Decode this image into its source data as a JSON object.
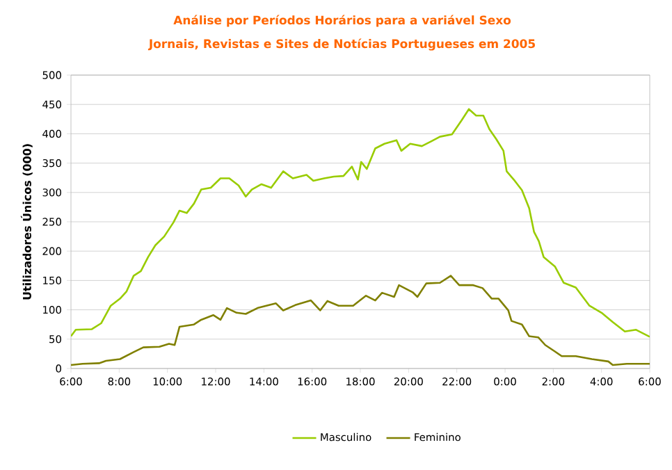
{
  "chart_data": {
    "type": "line",
    "title": "Análise por Períodos Horários para a variável Sexo",
    "subtitle": "Jornais, Revistas e Sites de Notícias Portugueses em 2005",
    "ylabel": "Utilizadores Únicos (000)",
    "xlim": [
      "2005-01-01T06:00",
      "2005-01-02T06:00"
    ],
    "ylim": [
      0,
      500
    ],
    "xticks": [
      {
        "value": "2005-01-01T06:00",
        "label": "6:00"
      },
      {
        "value": "2005-01-01T08:00",
        "label": "8:00"
      },
      {
        "value": "2005-01-01T10:00",
        "label": "10:00"
      },
      {
        "value": "2005-01-01T12:00",
        "label": "12:00"
      },
      {
        "value": "2005-01-01T14:00",
        "label": "14:00"
      },
      {
        "value": "2005-01-01T16:00",
        "label": "16:00"
      },
      {
        "value": "2005-01-01T18:00",
        "label": "18:00"
      },
      {
        "value": "2005-01-01T20:00",
        "label": "20:00"
      },
      {
        "value": "2005-01-01T22:00",
        "label": "22:00"
      },
      {
        "value": "2005-01-02T00:00",
        "label": "0:00"
      },
      {
        "value": "2005-01-02T02:00",
        "label": "2:00"
      },
      {
        "value": "2005-01-02T04:00",
        "label": "4:00"
      },
      {
        "value": "2005-01-02T06:00",
        "label": "6:00"
      }
    ],
    "yticks": [
      0,
      50,
      100,
      150,
      200,
      250,
      300,
      350,
      400,
      450,
      500
    ],
    "grid": "y",
    "legend": "bottom",
    "marker": "none",
    "series": [
      {
        "name": "Masculino",
        "color": "#99cc00",
        "x": [
          "2005-01-01T06:00",
          "2005-01-01T06:12",
          "2005-01-01T06:52",
          "2005-01-01T07:15",
          "2005-01-01T07:39",
          "2005-01-01T08:02",
          "2005-01-01T08:18",
          "2005-01-01T08:36",
          "2005-01-01T08:54",
          "2005-01-01T09:12",
          "2005-01-01T09:30",
          "2005-01-01T09:52",
          "2005-01-01T10:15",
          "2005-01-01T10:30",
          "2005-01-01T10:48",
          "2005-01-01T11:06",
          "2005-01-01T11:24",
          "2005-01-01T11:48",
          "2005-01-01T12:12",
          "2005-01-01T12:34",
          "2005-01-01T12:57",
          "2005-01-01T13:15",
          "2005-01-01T13:30",
          "2005-01-01T13:54",
          "2005-01-01T14:18",
          "2005-01-01T14:48",
          "2005-01-01T15:12",
          "2005-01-01T15:46",
          "2005-01-01T16:03",
          "2005-01-01T16:30",
          "2005-01-01T16:54",
          "2005-01-01T17:18",
          "2005-01-01T17:39",
          "2005-01-01T17:54",
          "2005-01-01T18:02",
          "2005-01-01T18:16",
          "2005-01-01T18:37",
          "2005-01-01T19:00",
          "2005-01-01T19:30",
          "2005-01-01T19:42",
          "2005-01-01T20:04",
          "2005-01-01T20:33",
          "2005-01-01T20:56",
          "2005-01-01T21:18",
          "2005-01-01T21:48",
          "2005-01-01T22:12",
          "2005-01-01T22:30",
          "2005-01-01T22:48",
          "2005-01-01T23:06",
          "2005-01-01T23:21",
          "2005-01-01T23:38",
          "2005-01-01T23:56",
          "2005-01-02T00:04",
          "2005-01-02T00:24",
          "2005-01-02T00:42",
          "2005-01-02T01:00",
          "2005-01-02T01:12",
          "2005-01-02T01:24",
          "2005-01-02T01:36",
          "2005-01-02T02:04",
          "2005-01-02T02:26",
          "2005-01-02T02:56",
          "2005-01-02T03:30",
          "2005-01-02T04:00",
          "2005-01-02T04:28",
          "2005-01-02T04:58",
          "2005-01-02T05:26",
          "2005-01-02T06:00"
        ],
        "values": [
          55,
          66,
          67,
          77,
          107,
          119,
          131,
          158,
          166,
          190,
          210,
          225,
          249,
          269,
          265,
          281,
          305,
          308,
          324,
          324,
          312,
          293,
          305,
          314,
          308,
          336,
          324,
          330,
          320,
          324,
          327,
          328,
          344,
          322,
          352,
          340,
          375,
          383,
          389,
          371,
          383,
          379,
          387,
          395,
          399,
          423,
          442,
          431,
          431,
          408,
          391,
          371,
          336,
          320,
          304,
          273,
          233,
          217,
          190,
          174,
          146,
          138,
          107,
          95,
          79,
          63,
          66,
          54
        ]
      },
      {
        "name": "Feminino",
        "color": "#808000",
        "x": [
          "2005-01-01T06:00",
          "2005-01-01T06:29",
          "2005-01-01T07:10",
          "2005-01-01T07:27",
          "2005-01-01T08:02",
          "2005-01-01T08:36",
          "2005-01-01T09:00",
          "2005-01-01T09:40",
          "2005-01-01T10:04",
          "2005-01-01T10:18",
          "2005-01-01T10:30",
          "2005-01-01T11:06",
          "2005-01-01T11:24",
          "2005-01-01T11:54",
          "2005-01-01T12:12",
          "2005-01-01T12:28",
          "2005-01-01T12:52",
          "2005-01-01T13:15",
          "2005-01-01T13:44",
          "2005-01-01T14:06",
          "2005-01-01T14:30",
          "2005-01-01T14:48",
          "2005-01-01T15:18",
          "2005-01-01T15:57",
          "2005-01-01T16:20",
          "2005-01-01T16:38",
          "2005-01-01T17:06",
          "2005-01-01T17:42",
          "2005-01-01T17:59",
          "2005-01-01T18:14",
          "2005-01-01T18:37",
          "2005-01-01T18:54",
          "2005-01-01T19:24",
          "2005-01-01T19:36",
          "2005-01-01T20:10",
          "2005-01-01T20:22",
          "2005-01-01T20:44",
          "2005-01-01T21:18",
          "2005-01-01T21:45",
          "2005-01-01T22:06",
          "2005-01-01T22:41",
          "2005-01-01T23:04",
          "2005-01-01T23:27",
          "2005-01-01T23:44",
          "2005-01-02T00:08",
          "2005-01-02T00:16",
          "2005-01-02T00:42",
          "2005-01-02T01:00",
          "2005-01-02T01:23",
          "2005-01-02T01:40",
          "2005-01-02T02:04",
          "2005-01-02T02:21",
          "2005-01-02T02:56",
          "2005-01-02T03:36",
          "2005-01-02T04:17",
          "2005-01-02T04:28",
          "2005-01-02T05:03",
          "2005-01-02T06:00"
        ],
        "values": [
          6,
          8,
          9,
          13,
          16,
          28,
          36,
          37,
          42,
          40,
          71,
          75,
          83,
          91,
          83,
          103,
          95,
          93,
          103,
          107,
          111,
          99,
          108,
          116,
          99,
          115,
          107,
          107,
          116,
          124,
          116,
          129,
          122,
          142,
          130,
          122,
          145,
          146,
          158,
          142,
          142,
          137,
          119,
          119,
          99,
          81,
          75,
          55,
          53,
          40,
          29,
          21,
          21,
          16,
          12,
          6,
          8,
          8
        ]
      }
    ]
  }
}
